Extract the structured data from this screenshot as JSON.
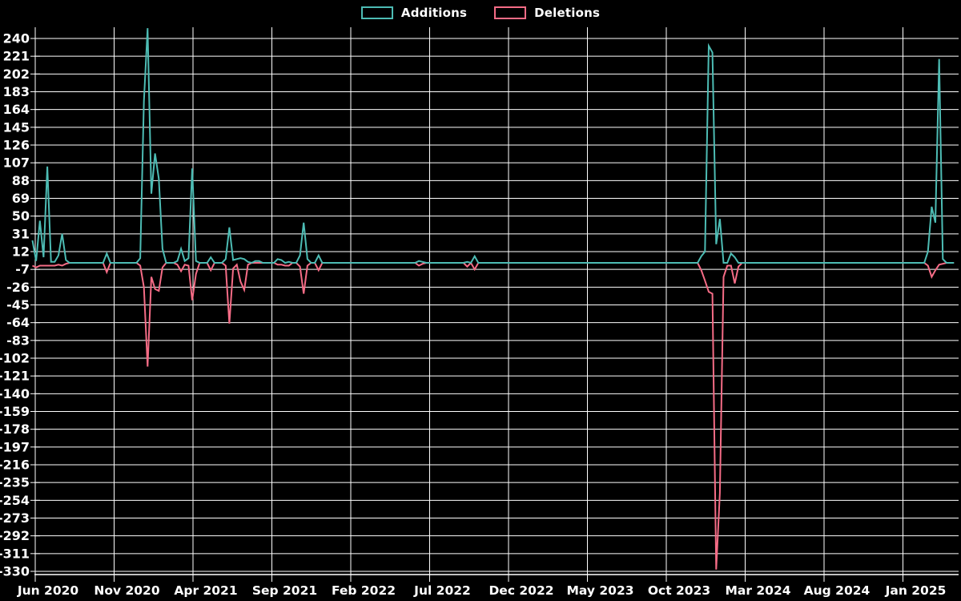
{
  "legend": {
    "additions_label": "Additions",
    "deletions_label": "Deletions"
  },
  "colors": {
    "background": "#000000",
    "grid": "#ffffff",
    "text": "#ffffff",
    "additions": "#4dbcb4",
    "deletions": "#f56c86"
  },
  "chart_data": {
    "type": "line",
    "title": "",
    "xlabel": "",
    "ylabel": "",
    "legend_position": "top-center",
    "grid": true,
    "x_tick_labels": [
      "Jun 2020",
      "Nov 2020",
      "Apr 2021",
      "Sep 2021",
      "Feb 2022",
      "Jul 2022",
      "Dec 2022",
      "May 2023",
      "Oct 2023",
      "Mar 2024",
      "Aug 2024",
      "Jan 2025"
    ],
    "y_ticks": [
      240,
      221,
      202,
      183,
      164,
      145,
      126,
      107,
      88,
      69,
      50,
      31,
      12,
      -7,
      -26,
      -45,
      -64,
      -83,
      -102,
      -121,
      -140,
      -159,
      -178,
      -197,
      -216,
      -235,
      -254,
      -273,
      -292,
      -311,
      -330
    ],
    "ylim": [
      -333,
      252
    ],
    "weeks_total": 249,
    "x_unit": "week",
    "series": [
      {
        "name": "Additions",
        "color": "#4dbcb4",
        "default_value": 0,
        "points_nonzero": [
          [
            0,
            24
          ],
          [
            1,
            2
          ],
          [
            2,
            45
          ],
          [
            3,
            6
          ],
          [
            4,
            103
          ],
          [
            5,
            1
          ],
          [
            6,
            1
          ],
          [
            7,
            8
          ],
          [
            8,
            31
          ],
          [
            9,
            3
          ],
          [
            20,
            10
          ],
          [
            29,
            5
          ],
          [
            30,
            173
          ],
          [
            31,
            251
          ],
          [
            32,
            74
          ],
          [
            33,
            117
          ],
          [
            34,
            90
          ],
          [
            35,
            15
          ],
          [
            39,
            2
          ],
          [
            40,
            15
          ],
          [
            41,
            2
          ],
          [
            42,
            5
          ],
          [
            43,
            101
          ],
          [
            44,
            2
          ],
          [
            48,
            6
          ],
          [
            52,
            4
          ],
          [
            53,
            38
          ],
          [
            54,
            3
          ],
          [
            55,
            4
          ],
          [
            56,
            5
          ],
          [
            57,
            4
          ],
          [
            58,
            1
          ],
          [
            60,
            2
          ],
          [
            61,
            2
          ],
          [
            66,
            4
          ],
          [
            67,
            3
          ],
          [
            69,
            1
          ],
          [
            72,
            8
          ],
          [
            73,
            43
          ],
          [
            74,
            4
          ],
          [
            77,
            8
          ],
          [
            104,
            2
          ],
          [
            105,
            1
          ],
          [
            117,
            1
          ],
          [
            119,
            7
          ],
          [
            180,
            7
          ],
          [
            181,
            12
          ],
          [
            182,
            232
          ],
          [
            183,
            225
          ],
          [
            184,
            20
          ],
          [
            185,
            47
          ],
          [
            188,
            10
          ],
          [
            189,
            6
          ],
          [
            241,
            12
          ],
          [
            242,
            60
          ],
          [
            243,
            43
          ],
          [
            244,
            218
          ],
          [
            245,
            4
          ]
        ]
      },
      {
        "name": "Deletions",
        "color": "#f56c86",
        "default_value": 0,
        "points_nonzero": [
          [
            0,
            -3
          ],
          [
            1,
            -5
          ],
          [
            2,
            -3
          ],
          [
            3,
            -3
          ],
          [
            4,
            -3
          ],
          [
            5,
            -3
          ],
          [
            6,
            -3
          ],
          [
            7,
            -2
          ],
          [
            8,
            -3
          ],
          [
            9,
            -1
          ],
          [
            20,
            -10
          ],
          [
            29,
            -3
          ],
          [
            30,
            -26
          ],
          [
            31,
            -111
          ],
          [
            32,
            -15
          ],
          [
            33,
            -28
          ],
          [
            34,
            -30
          ],
          [
            35,
            -5
          ],
          [
            39,
            -2
          ],
          [
            40,
            -9
          ],
          [
            41,
            -2
          ],
          [
            42,
            -3
          ],
          [
            43,
            -40
          ],
          [
            44,
            -12
          ],
          [
            48,
            -8
          ],
          [
            52,
            -3
          ],
          [
            53,
            -65
          ],
          [
            54,
            -6
          ],
          [
            55,
            -2
          ],
          [
            56,
            -20
          ],
          [
            57,
            -29
          ],
          [
            58,
            -2
          ],
          [
            66,
            -2
          ],
          [
            67,
            -2
          ],
          [
            68,
            -3
          ],
          [
            69,
            -3
          ],
          [
            72,
            -4
          ],
          [
            73,
            -33
          ],
          [
            74,
            -3
          ],
          [
            77,
            -8
          ],
          [
            104,
            -3
          ],
          [
            105,
            -1
          ],
          [
            117,
            -4
          ],
          [
            119,
            -7
          ],
          [
            180,
            -8
          ],
          [
            181,
            -19
          ],
          [
            182,
            -31
          ],
          [
            183,
            -33
          ],
          [
            184,
            -328
          ],
          [
            185,
            -246
          ],
          [
            186,
            -15
          ],
          [
            187,
            -3
          ],
          [
            188,
            -3
          ],
          [
            189,
            -22
          ],
          [
            190,
            -4
          ],
          [
            241,
            -3
          ],
          [
            242,
            -15
          ],
          [
            243,
            -8
          ],
          [
            244,
            -2
          ],
          [
            245,
            -1
          ]
        ]
      }
    ]
  }
}
